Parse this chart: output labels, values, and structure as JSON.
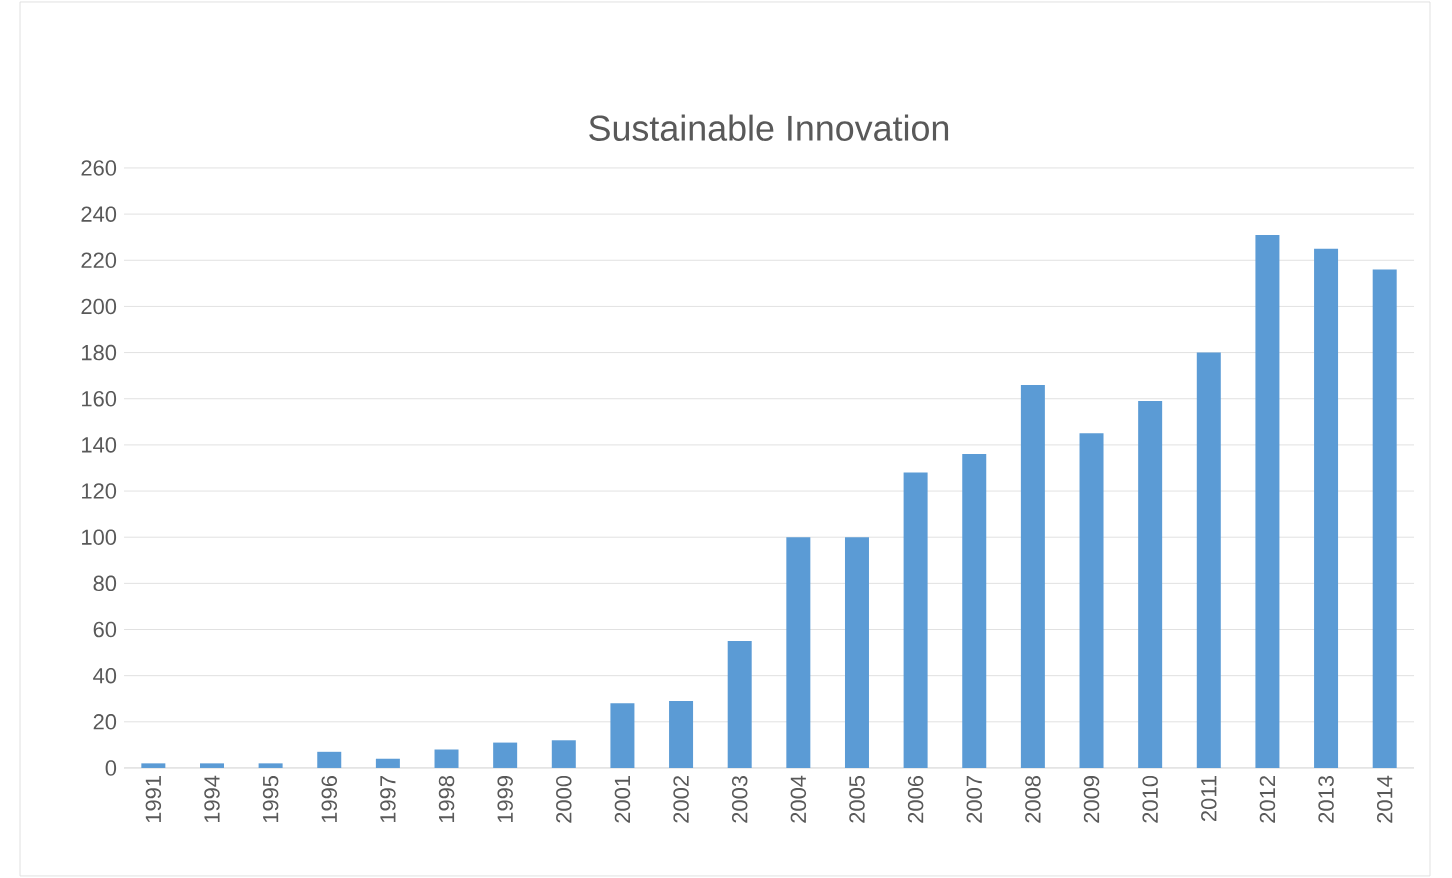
{
  "chart_data": {
    "type": "bar",
    "title": "Sustainable Innovation",
    "categories": [
      "1991",
      "1994",
      "1995",
      "1996",
      "1997",
      "1998",
      "1999",
      "2000",
      "2001",
      "2002",
      "2003",
      "2004",
      "2005",
      "2006",
      "2007",
      "2008",
      "2009",
      "2010",
      "2011",
      "2012",
      "2013",
      "2014"
    ],
    "values": [
      2,
      2,
      2,
      7,
      4,
      8,
      11,
      12,
      28,
      29,
      55,
      100,
      100,
      128,
      136,
      166,
      145,
      159,
      180,
      231,
      225,
      216
    ],
    "color": "#5b9bd5",
    "ylim": [
      0,
      260
    ],
    "yticks": [
      0,
      20,
      40,
      60,
      80,
      100,
      120,
      140,
      160,
      180,
      200,
      220,
      240,
      260
    ],
    "grid": "y"
  }
}
